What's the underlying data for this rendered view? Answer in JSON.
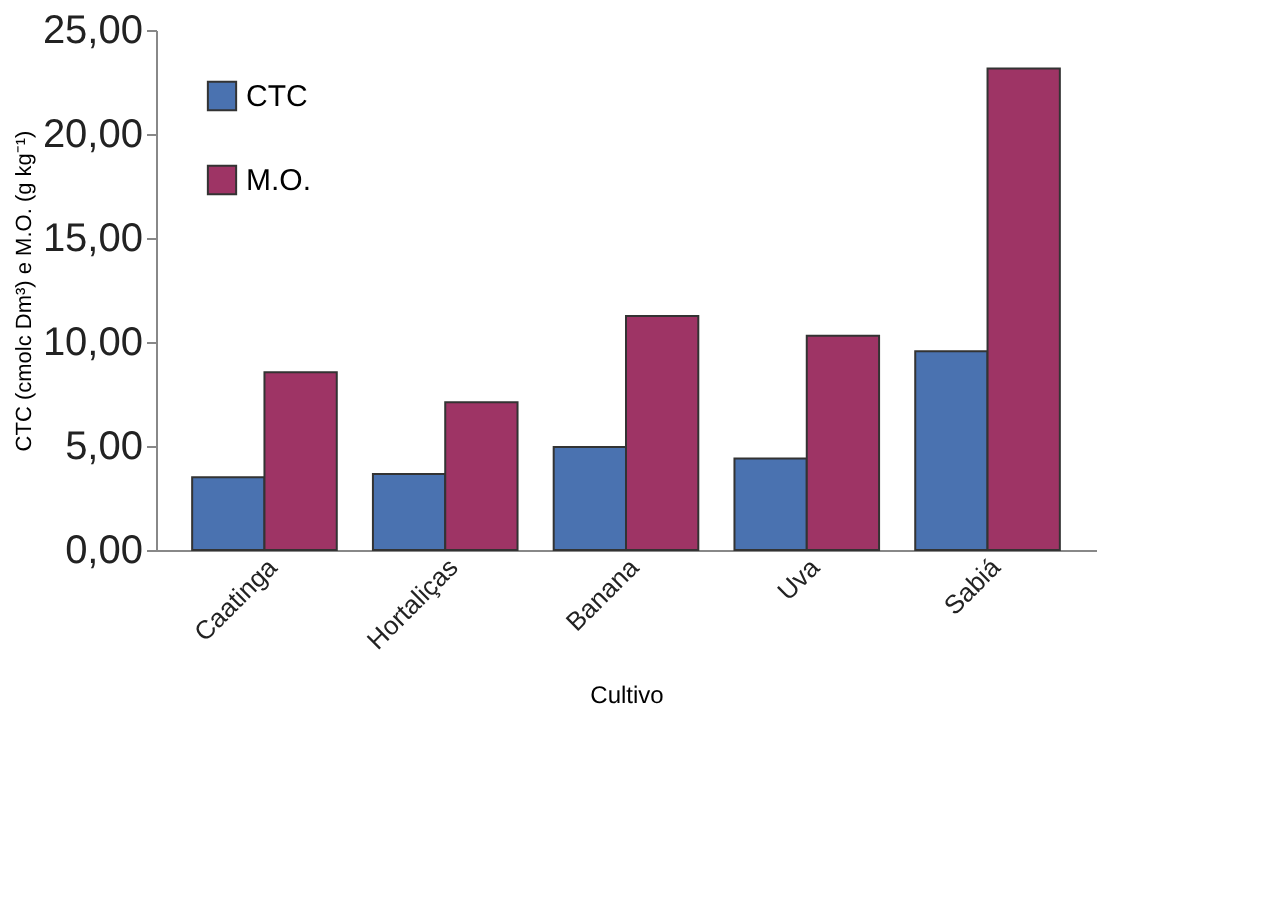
{
  "chart_data": {
    "type": "bar",
    "xlabel": "Cultivo",
    "ylabel": "CTC (cmolc Dm³) e M.O. (g kg⁻¹)",
    "categories": [
      "Caatinga",
      "Hortaliças",
      "Banana",
      "Uva",
      "Sabiá"
    ],
    "series": [
      {
        "name": "CTC",
        "color": "#4a72b0",
        "values": [
          3.5,
          3.65,
          4.95,
          4.4,
          9.55
        ]
      },
      {
        "name": "M.O.",
        "color": "#9e3465",
        "values": [
          8.55,
          7.1,
          11.25,
          10.3,
          23.15
        ]
      }
    ],
    "ylim": [
      0,
      25
    ],
    "yticks": [
      {
        "value": 0,
        "label": "0,00"
      },
      {
        "value": 5,
        "label": "5,00"
      },
      {
        "value": 10,
        "label": "10,00"
      },
      {
        "value": 15,
        "label": "15,00"
      },
      {
        "value": 20,
        "label": "20,00"
      },
      {
        "value": 25,
        "label": "25,00"
      }
    ],
    "grid": false,
    "legend": "top left"
  }
}
